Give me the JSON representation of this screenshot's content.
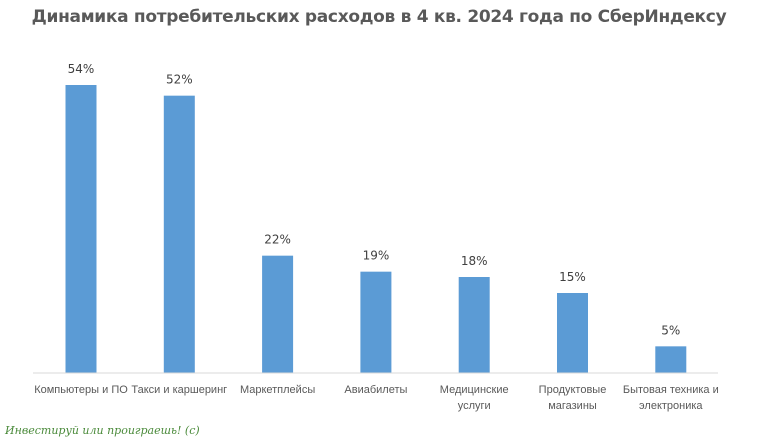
{
  "chart_data": {
    "type": "bar",
    "title": "Динамика потребительских расходов в 4 кв. 2024 года по СберИндексу",
    "categories": [
      [
        "Компьютеры и ПО"
      ],
      [
        "Такси и каршеринг"
      ],
      [
        "Маркетплейсы"
      ],
      [
        "Авиабилеты"
      ],
      [
        "Медицинские",
        "услуги"
      ],
      [
        "Продуктовые",
        "магазины"
      ],
      [
        "Бытовая техника и",
        "электроника"
      ]
    ],
    "values": [
      54,
      52,
      22,
      19,
      18,
      15,
      5
    ],
    "data_labels": [
      "54%",
      "52%",
      "22%",
      "19%",
      "18%",
      "15%",
      "5%"
    ],
    "unit": "%",
    "ylim": [
      0,
      54
    ],
    "grid": false,
    "bar_color": "#5b9bd5"
  },
  "watermark": "Инвестируй или проиграешь! (с)"
}
